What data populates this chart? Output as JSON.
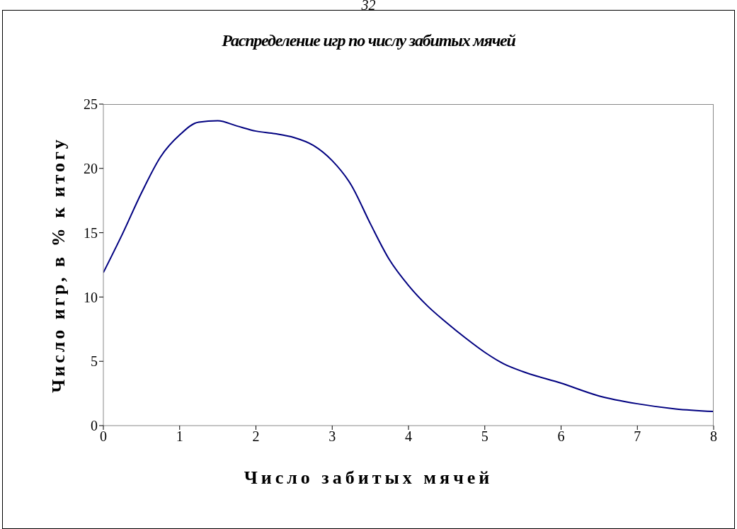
{
  "chart_data": {
    "type": "line",
    "title": "Распределение  игр по числу забитых мячей",
    "xlabel": "Число забитых мячей",
    "ylabel": "Число игр, в % к итогу",
    "annotations": [
      "32"
    ],
    "x": [
      0,
      0.25,
      0.5,
      0.75,
      1,
      1.25,
      1.5,
      1.75,
      2,
      2.25,
      2.5,
      2.75,
      3,
      3.25,
      3.5,
      3.75,
      4,
      4.25,
      4.5,
      4.75,
      5,
      5.25,
      5.5,
      6,
      6.5,
      7,
      7.5,
      8
    ],
    "series": [
      {
        "color": "#000080",
        "values": [
          11.9,
          14.9,
          18.1,
          20.9,
          22.6,
          23.6,
          23.7,
          23.3,
          22.9,
          22.7,
          22.4,
          21.8,
          20.6,
          18.7,
          15.7,
          12.9,
          10.9,
          9.3,
          8.0,
          6.8,
          5.7,
          4.8,
          4.2,
          3.3,
          2.3,
          1.7,
          1.3,
          1.1
        ]
      }
    ],
    "xlim": [
      0,
      8
    ],
    "xticks": [
      0,
      1,
      2,
      3,
      4,
      5,
      6,
      7,
      8
    ],
    "ylim": [
      0,
      25
    ],
    "yticks": [
      0,
      5,
      10,
      15,
      20,
      25
    ],
    "grid": false,
    "legend": false
  }
}
